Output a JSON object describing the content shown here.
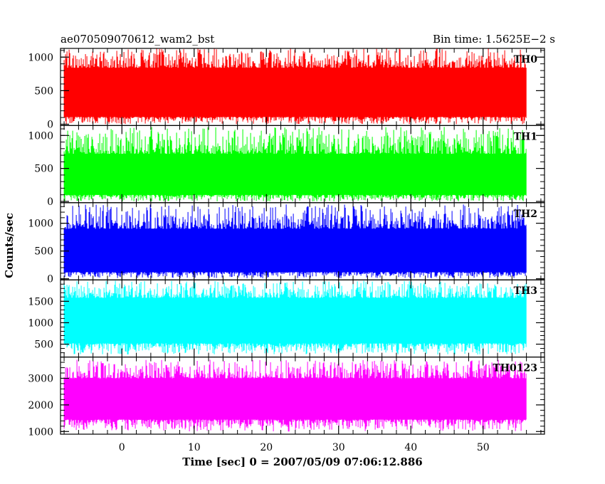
{
  "chart_data": {
    "type": "line",
    "title": "ae070509070612_wam2_bst",
    "subtitle": "Bin time: 1.5625E−2 s",
    "xlabel": "Time [sec] 0 = 2007/05/09 07:06:12.886",
    "ylabel": "Counts/sec",
    "xlim": [
      -8.5,
      58.5
    ],
    "x_ticks": [
      "0",
      "10",
      "20",
      "30",
      "40",
      "50"
    ],
    "x_tick_values": [
      0,
      10,
      20,
      30,
      40,
      50
    ],
    "data_x_range": [
      -8,
      56
    ],
    "panels": [
      {
        "name": "TH0",
        "color": "#ff0000",
        "ylim": [
          -20,
          1130
        ],
        "y_ticks": [
          0,
          500,
          1000
        ],
        "y_tick_labels": [
          "0",
          "500",
          "1000"
        ],
        "base_low": 110,
        "base_high": 840,
        "noise_low": 0,
        "noise_high": 1130
      },
      {
        "name": "TH1",
        "color": "#00ff00",
        "ylim": [
          -20,
          1150
        ],
        "y_ticks": [
          0,
          500,
          1000
        ],
        "y_tick_labels": [
          "0",
          "500",
          "1000"
        ],
        "base_low": 100,
        "base_high": 720,
        "noise_low": 0,
        "noise_high": 1130
      },
      {
        "name": "TH2",
        "color": "#0000ff",
        "ylim": [
          -20,
          1370
        ],
        "y_ticks": [
          0,
          500,
          1000
        ],
        "y_tick_labels": [
          "0",
          "500",
          "1000"
        ],
        "base_low": 120,
        "base_high": 900,
        "noise_low": 10,
        "noise_high": 1340
      },
      {
        "name": "TH3",
        "color": "#00ffff",
        "ylim": [
          200,
          2000
        ],
        "y_ticks": [
          500,
          1000,
          1500
        ],
        "y_tick_labels": [
          "500",
          "1000",
          "1500"
        ],
        "base_low": 520,
        "base_high": 1580,
        "noise_low": 260,
        "noise_high": 1980
      },
      {
        "name": "TH0123",
        "color": "#ff00ff",
        "ylim": [
          900,
          3800
        ],
        "y_ticks": [
          1000,
          2000,
          3000
        ],
        "y_tick_labels": [
          "1000",
          "2000",
          "3000"
        ],
        "base_low": 1450,
        "base_high": 3000,
        "noise_low": 1000,
        "noise_high": 3700
      }
    ]
  }
}
